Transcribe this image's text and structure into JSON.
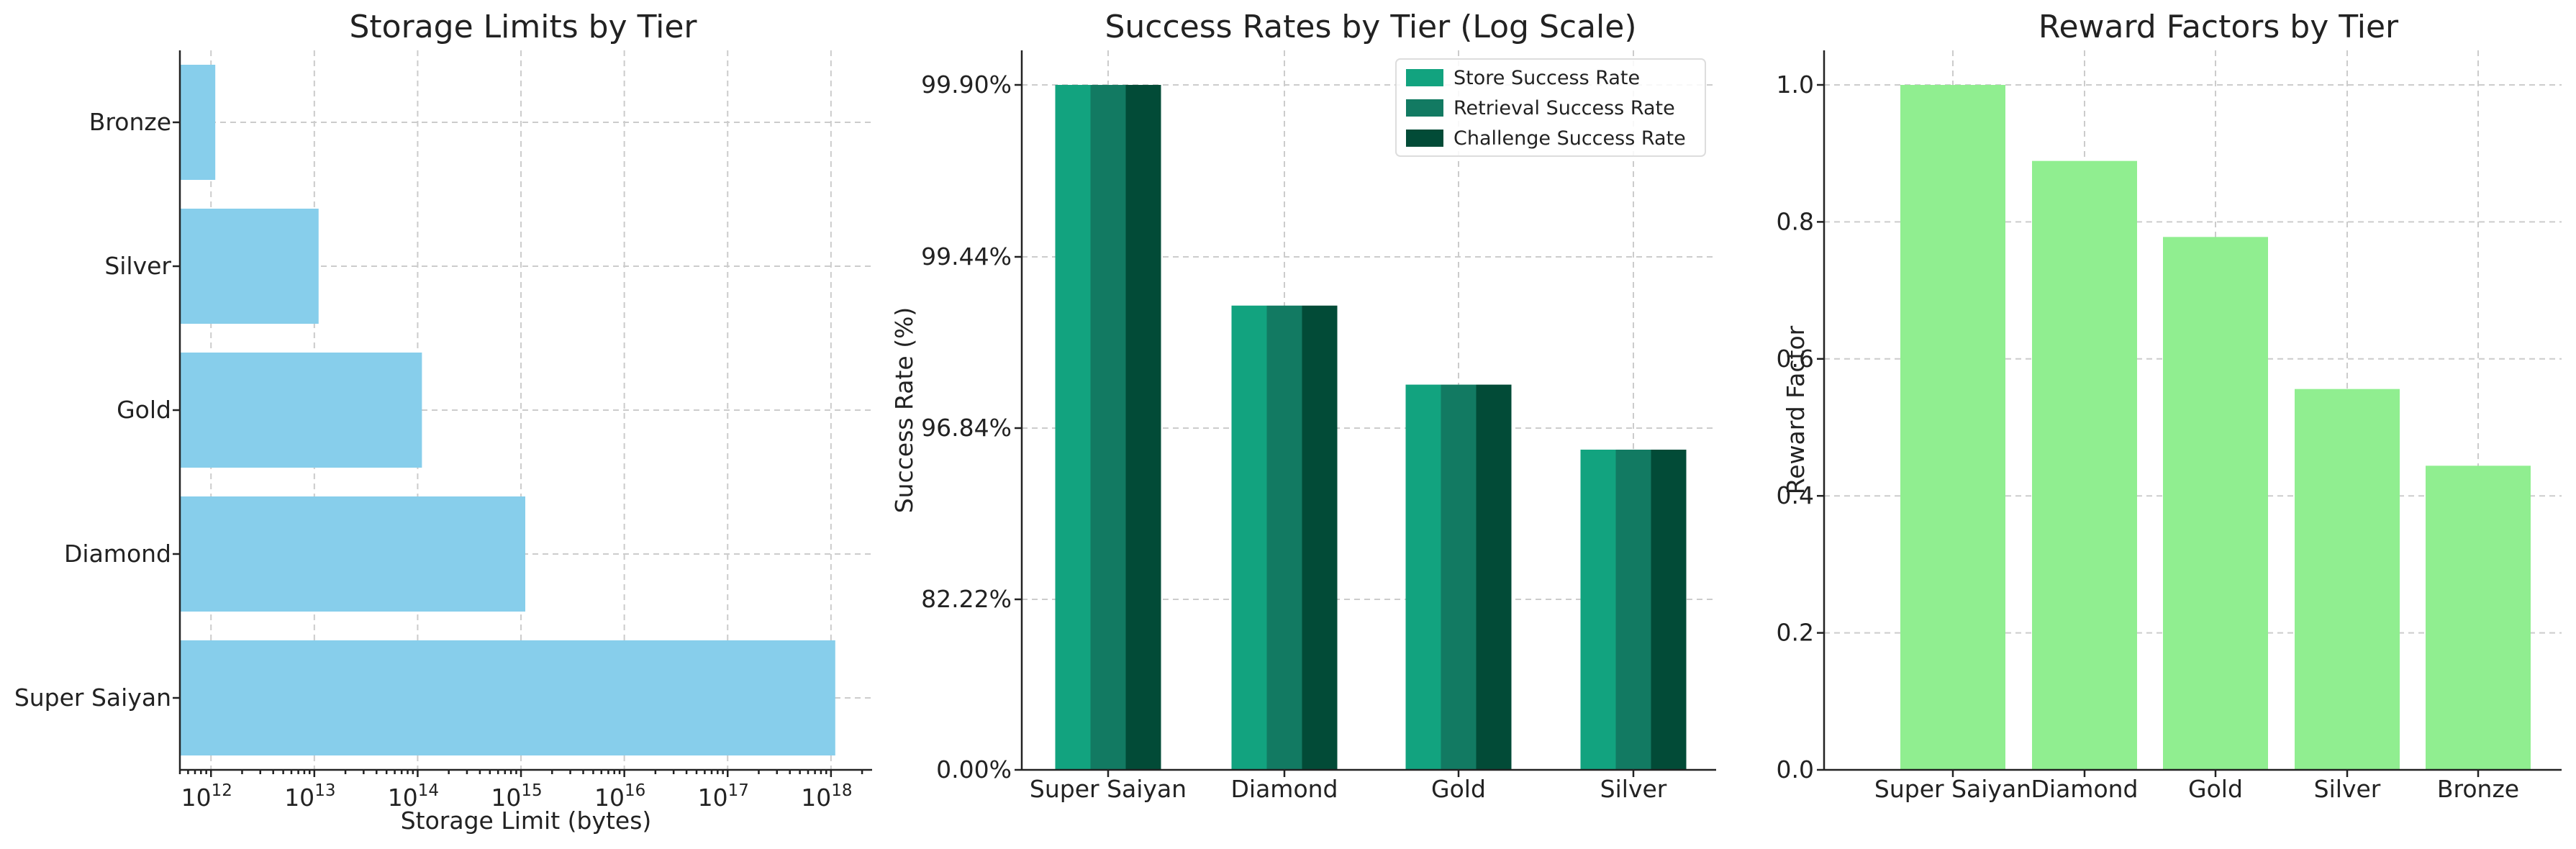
{
  "chart_data": [
    {
      "type": "bar",
      "orientation": "horizontal",
      "title": "Storage Limits by Tier",
      "xlabel": "Storage Limit (bytes)",
      "ylabel": "",
      "xscale": "log",
      "xlim": [
        500000000000.0,
        2.5e+18
      ],
      "categories": [
        "Super Saiyan",
        "Diamond",
        "Gold",
        "Silver",
        "Bronze"
      ],
      "values": [
        1.1e+18,
        1100000000000000.0,
        110000000000000.0,
        11000000000000.0,
        1100000000000.0
      ],
      "x_ticks": [
        {
          "base": "10",
          "exp": "12",
          "value": 1000000000000.0
        },
        {
          "base": "10",
          "exp": "13",
          "value": 10000000000000.0
        },
        {
          "base": "10",
          "exp": "14",
          "value": 100000000000000.0
        },
        {
          "base": "10",
          "exp": "15",
          "value": 1000000000000000.0
        },
        {
          "base": "10",
          "exp": "16",
          "value": 1e+16
        },
        {
          "base": "10",
          "exp": "17",
          "value": 1e+17
        },
        {
          "base": "10",
          "exp": "18",
          "value": 1e+18
        }
      ],
      "color": "#87CEEB",
      "grid": true,
      "legend": "none"
    },
    {
      "type": "bar",
      "title": "Success Rates by Tier (Log Scale)",
      "xlabel": "",
      "ylabel": "Success Rate (%)",
      "categories": [
        "Super Saiyan",
        "Diamond",
        "Gold",
        "Silver"
      ],
      "y_tick_labels": [
        "0.00%",
        "82.22%",
        "96.84%",
        "99.44%",
        "99.90%"
      ],
      "y_tick_values": [
        0,
        82.22,
        96.84,
        99.44,
        99.9
      ],
      "series": [
        {
          "name": "Store Success Rate",
          "color": "#12A37F",
          "values": [
            99.9,
            98.7,
            97.5,
            95.0
          ]
        },
        {
          "name": "Retrieval Success Rate",
          "color": "#127A62",
          "values": [
            99.9,
            98.7,
            97.5,
            95.0
          ]
        },
        {
          "name": "Challenge Success Rate",
          "color": "#024B37",
          "values": [
            99.9,
            98.7,
            97.5,
            95.0
          ]
        }
      ],
      "grid": true,
      "legend": "top-right"
    },
    {
      "type": "bar",
      "title": "Reward Factors by Tier",
      "xlabel": "",
      "ylabel": "Reward Factor",
      "ylim": [
        0,
        1.05
      ],
      "categories": [
        "Super Saiyan",
        "Diamond",
        "Gold",
        "Silver",
        "Bronze"
      ],
      "values": [
        1.0,
        0.889,
        0.778,
        0.556,
        0.444
      ],
      "y_ticks": [
        "0.0",
        "0.2",
        "0.4",
        "0.6",
        "0.8",
        "1.0"
      ],
      "color": "#90EE90",
      "grid": true,
      "legend": "none"
    }
  ]
}
